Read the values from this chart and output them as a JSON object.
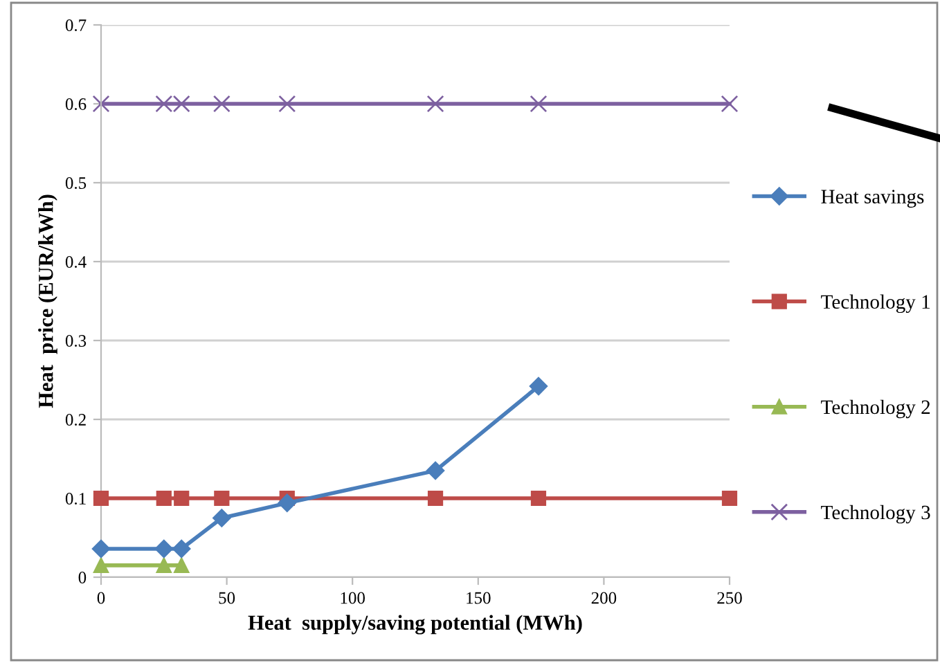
{
  "chart_data": {
    "type": "line",
    "xlabel": "Heat  supply/saving potential (MWh)",
    "ylabel": "Heat  price (EUR/kWh)",
    "xlim": [
      0,
      250
    ],
    "xticks": [
      0,
      50,
      100,
      150,
      200,
      250
    ],
    "ylim": [
      0,
      0.7
    ],
    "yticks": [
      0,
      0.1,
      0.2,
      0.3,
      0.4,
      0.5,
      0.6,
      0.7
    ],
    "grid": "y",
    "legend": "right",
    "series": [
      {
        "name": "Heat savings",
        "color": "#4a7ebb",
        "marker": "diamond",
        "x": [
          0,
          25,
          32,
          48,
          74,
          133,
          174
        ],
        "values": [
          0.036,
          0.036,
          0.036,
          0.075,
          0.094,
          0.135,
          0.242
        ]
      },
      {
        "name": "Technology 1",
        "color": "#be4b48",
        "marker": "square",
        "x": [
          0,
          25,
          32,
          48,
          74,
          133,
          174,
          250
        ],
        "values": [
          0.1,
          0.1,
          0.1,
          0.1,
          0.1,
          0.1,
          0.1,
          0.1
        ]
      },
      {
        "name": "Technology 2",
        "color": "#98b954",
        "marker": "triangle",
        "x": [
          0,
          25,
          32
        ],
        "values": [
          0.015,
          0.015,
          0.015
        ]
      },
      {
        "name": "Technology 3",
        "color": "#7d60a0",
        "marker": "cross",
        "x": [
          0,
          25,
          32,
          48,
          74,
          133,
          174,
          250
        ],
        "values": [
          0.6,
          0.6,
          0.6,
          0.6,
          0.6,
          0.6,
          0.6,
          0.6
        ]
      }
    ]
  }
}
